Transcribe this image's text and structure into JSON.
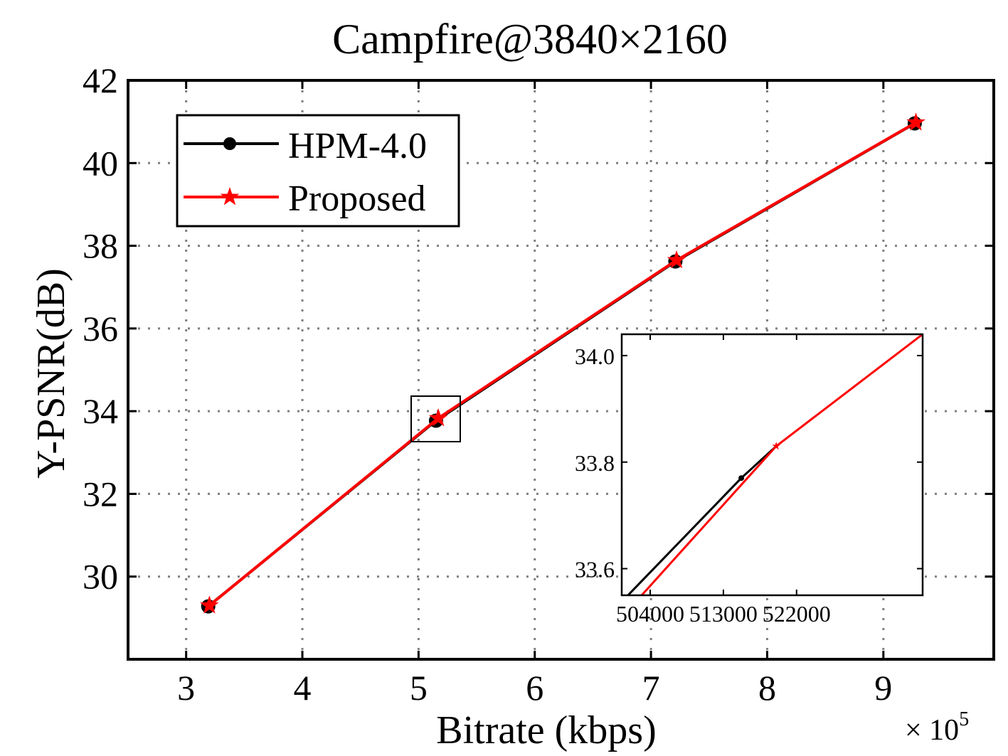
{
  "chart_data": [
    {
      "type": "line",
      "title": "Campfire@3840×2160",
      "xlabel": "Bitrate (kbps)",
      "ylabel": "Y-PSNR(dB)",
      "x_multiplier": "× 10",
      "x_multiplier_exp": "5",
      "xlim": [
        2.5,
        9.95
      ],
      "ylim": [
        28.0,
        42.0
      ],
      "xticks": [
        "3",
        "4",
        "5",
        "6",
        "7",
        "8",
        "9"
      ],
      "yticks": [
        "30",
        "32",
        "34",
        "36",
        "38",
        "40",
        "42"
      ],
      "grid": true,
      "legend": "top-left",
      "series": [
        {
          "name": "HPM-4.0",
          "color": "#000000",
          "marker": "circle",
          "x": [
            3.19,
            5.15,
            7.21,
            9.27
          ],
          "y": [
            29.28,
            33.77,
            37.62,
            40.96
          ]
        },
        {
          "name": "Proposed",
          "color": "#ff0000",
          "marker": "star",
          "x": [
            3.2,
            5.17,
            7.22,
            9.28
          ],
          "y": [
            29.3,
            33.83,
            37.65,
            40.98
          ]
        }
      ]
    },
    {
      "type": "line",
      "title": "",
      "xlim": [
        500500,
        537500
      ],
      "ylim": [
        33.55,
        34.04
      ],
      "xticks": [
        "504000",
        "513000",
        "522000"
      ],
      "yticks": [
        "33.6",
        "33.8",
        "34.0"
      ],
      "grid": false,
      "series": [
        {
          "name": "HPM-4.0",
          "color": "#000000",
          "x": [
            500000,
            515200,
            519500
          ],
          "y": [
            33.53,
            33.77,
            33.83
          ]
        },
        {
          "name": "Proposed",
          "color": "#ff0000",
          "x": [
            500000,
            519500,
            537500
          ],
          "y": [
            33.5,
            33.83,
            34.04
          ]
        }
      ]
    }
  ]
}
